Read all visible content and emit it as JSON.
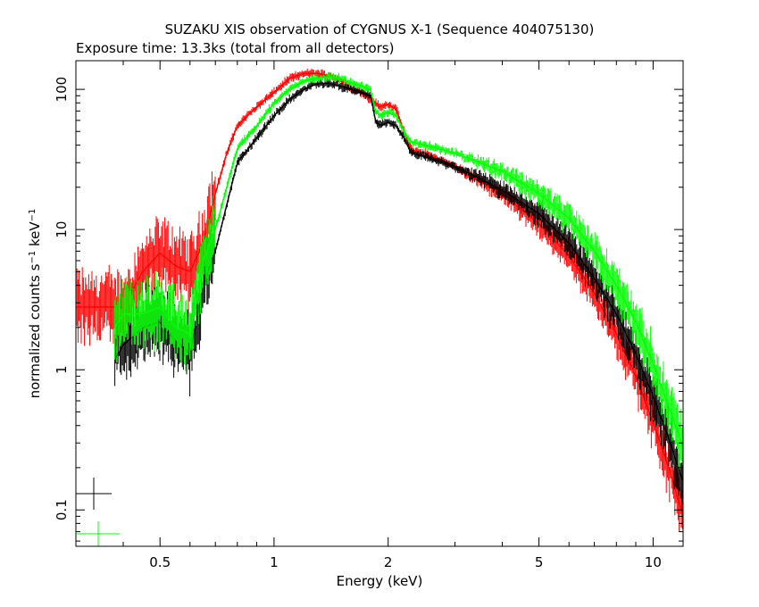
{
  "chart_data": {
    "type": "line",
    "title": "SUZAKU XIS observation of CYGNUS X-1 (Sequence 404075130)",
    "subtitle": "Exposure time: 13.3ks (total from all detectors)",
    "xlabel": "Energy (keV)",
    "ylabel_main": "normalized counts s",
    "ylabel_sup1": "−1",
    "ylabel_mid": " keV",
    "ylabel_sup2": "−1",
    "xscale": "log",
    "yscale": "log",
    "xlim": [
      0.3,
      12
    ],
    "ylim": [
      0.055,
      160
    ],
    "xticks": [
      {
        "value": 0.5,
        "label": "0.5"
      },
      {
        "value": 1,
        "label": "1"
      },
      {
        "value": 2,
        "label": "2"
      },
      {
        "value": 5,
        "label": "5"
      },
      {
        "value": 10,
        "label": "10"
      }
    ],
    "yticks": [
      {
        "value": 0.1,
        "label": "0.1"
      },
      {
        "value": 1,
        "label": "1"
      },
      {
        "value": 10,
        "label": "10"
      },
      {
        "value": 100,
        "label": "100"
      }
    ],
    "legend_placement": "bottom-left",
    "series": [
      {
        "color": "#ff0000",
        "x": [
          0.3,
          0.35,
          0.4,
          0.45,
          0.5,
          0.55,
          0.6,
          0.65,
          0.7,
          0.75,
          0.8,
          0.9,
          1.0,
          1.1,
          1.2,
          1.3,
          1.4,
          1.5,
          1.6,
          1.7,
          1.8,
          1.85,
          1.9,
          2.0,
          2.1,
          2.2,
          2.3,
          2.5,
          3.0,
          3.5,
          4.0,
          5.0,
          6.0,
          7.0,
          8.0,
          9.0,
          10.0,
          11.0,
          12.0
        ],
        "y": [
          2.8,
          2.8,
          2.8,
          5.0,
          6.8,
          5.5,
          5.0,
          8.0,
          18,
          35,
          55,
          75,
          95,
          120,
          130,
          130,
          125,
          115,
          100,
          95,
          85,
          80,
          75,
          78,
          72,
          50,
          37,
          35,
          28,
          22,
          18,
          11,
          6.5,
          3.5,
          1.8,
          0.9,
          0.42,
          0.2,
          0.09
        ]
      },
      {
        "color": "#000000",
        "x": [
          0.38,
          0.4,
          0.45,
          0.5,
          0.55,
          0.6,
          0.62,
          0.65,
          0.7,
          0.75,
          0.8,
          0.9,
          1.0,
          1.1,
          1.2,
          1.3,
          1.4,
          1.5,
          1.6,
          1.7,
          1.8,
          1.85,
          1.9,
          2.0,
          2.1,
          2.2,
          2.3,
          2.5,
          3.0,
          3.5,
          4.0,
          5.0,
          6.0,
          7.0,
          8.0,
          9.0,
          10.0,
          11.0,
          12.0
        ],
        "y": [
          1.2,
          1.5,
          2.0,
          2.2,
          1.6,
          1.3,
          2.0,
          4.0,
          7.0,
          15,
          30,
          45,
          65,
          85,
          100,
          110,
          110,
          105,
          100,
          95,
          90,
          60,
          55,
          58,
          55,
          45,
          35,
          33,
          28,
          23,
          19,
          13,
          8.0,
          4.5,
          2.5,
          1.3,
          0.65,
          0.32,
          0.16
        ]
      },
      {
        "color": "#00ff00",
        "x": [
          0.38,
          0.4,
          0.45,
          0.5,
          0.55,
          0.6,
          0.62,
          0.65,
          0.7,
          0.75,
          0.8,
          0.9,
          1.0,
          1.1,
          1.2,
          1.3,
          1.4,
          1.5,
          1.6,
          1.7,
          1.8,
          1.85,
          1.9,
          2.0,
          2.1,
          2.2,
          2.3,
          2.5,
          3.0,
          3.5,
          4.0,
          5.0,
          6.0,
          7.0,
          8.0,
          9.0,
          10.0,
          11.0,
          12.0
        ],
        "y": [
          2.0,
          2.5,
          2.5,
          2.8,
          2.0,
          1.8,
          3.0,
          6.0,
          10,
          20,
          38,
          55,
          80,
          100,
          115,
          120,
          122,
          120,
          110,
          105,
          100,
          70,
          65,
          68,
          65,
          50,
          42,
          40,
          35,
          30,
          26,
          18,
          12,
          7.0,
          4.0,
          2.2,
          1.1,
          0.55,
          0.28
        ]
      }
    ],
    "colors": {
      "background": "#ffffff",
      "axes": "#000000",
      "red": "#ff0000",
      "black": "#000000",
      "green": "#00ff00"
    }
  }
}
